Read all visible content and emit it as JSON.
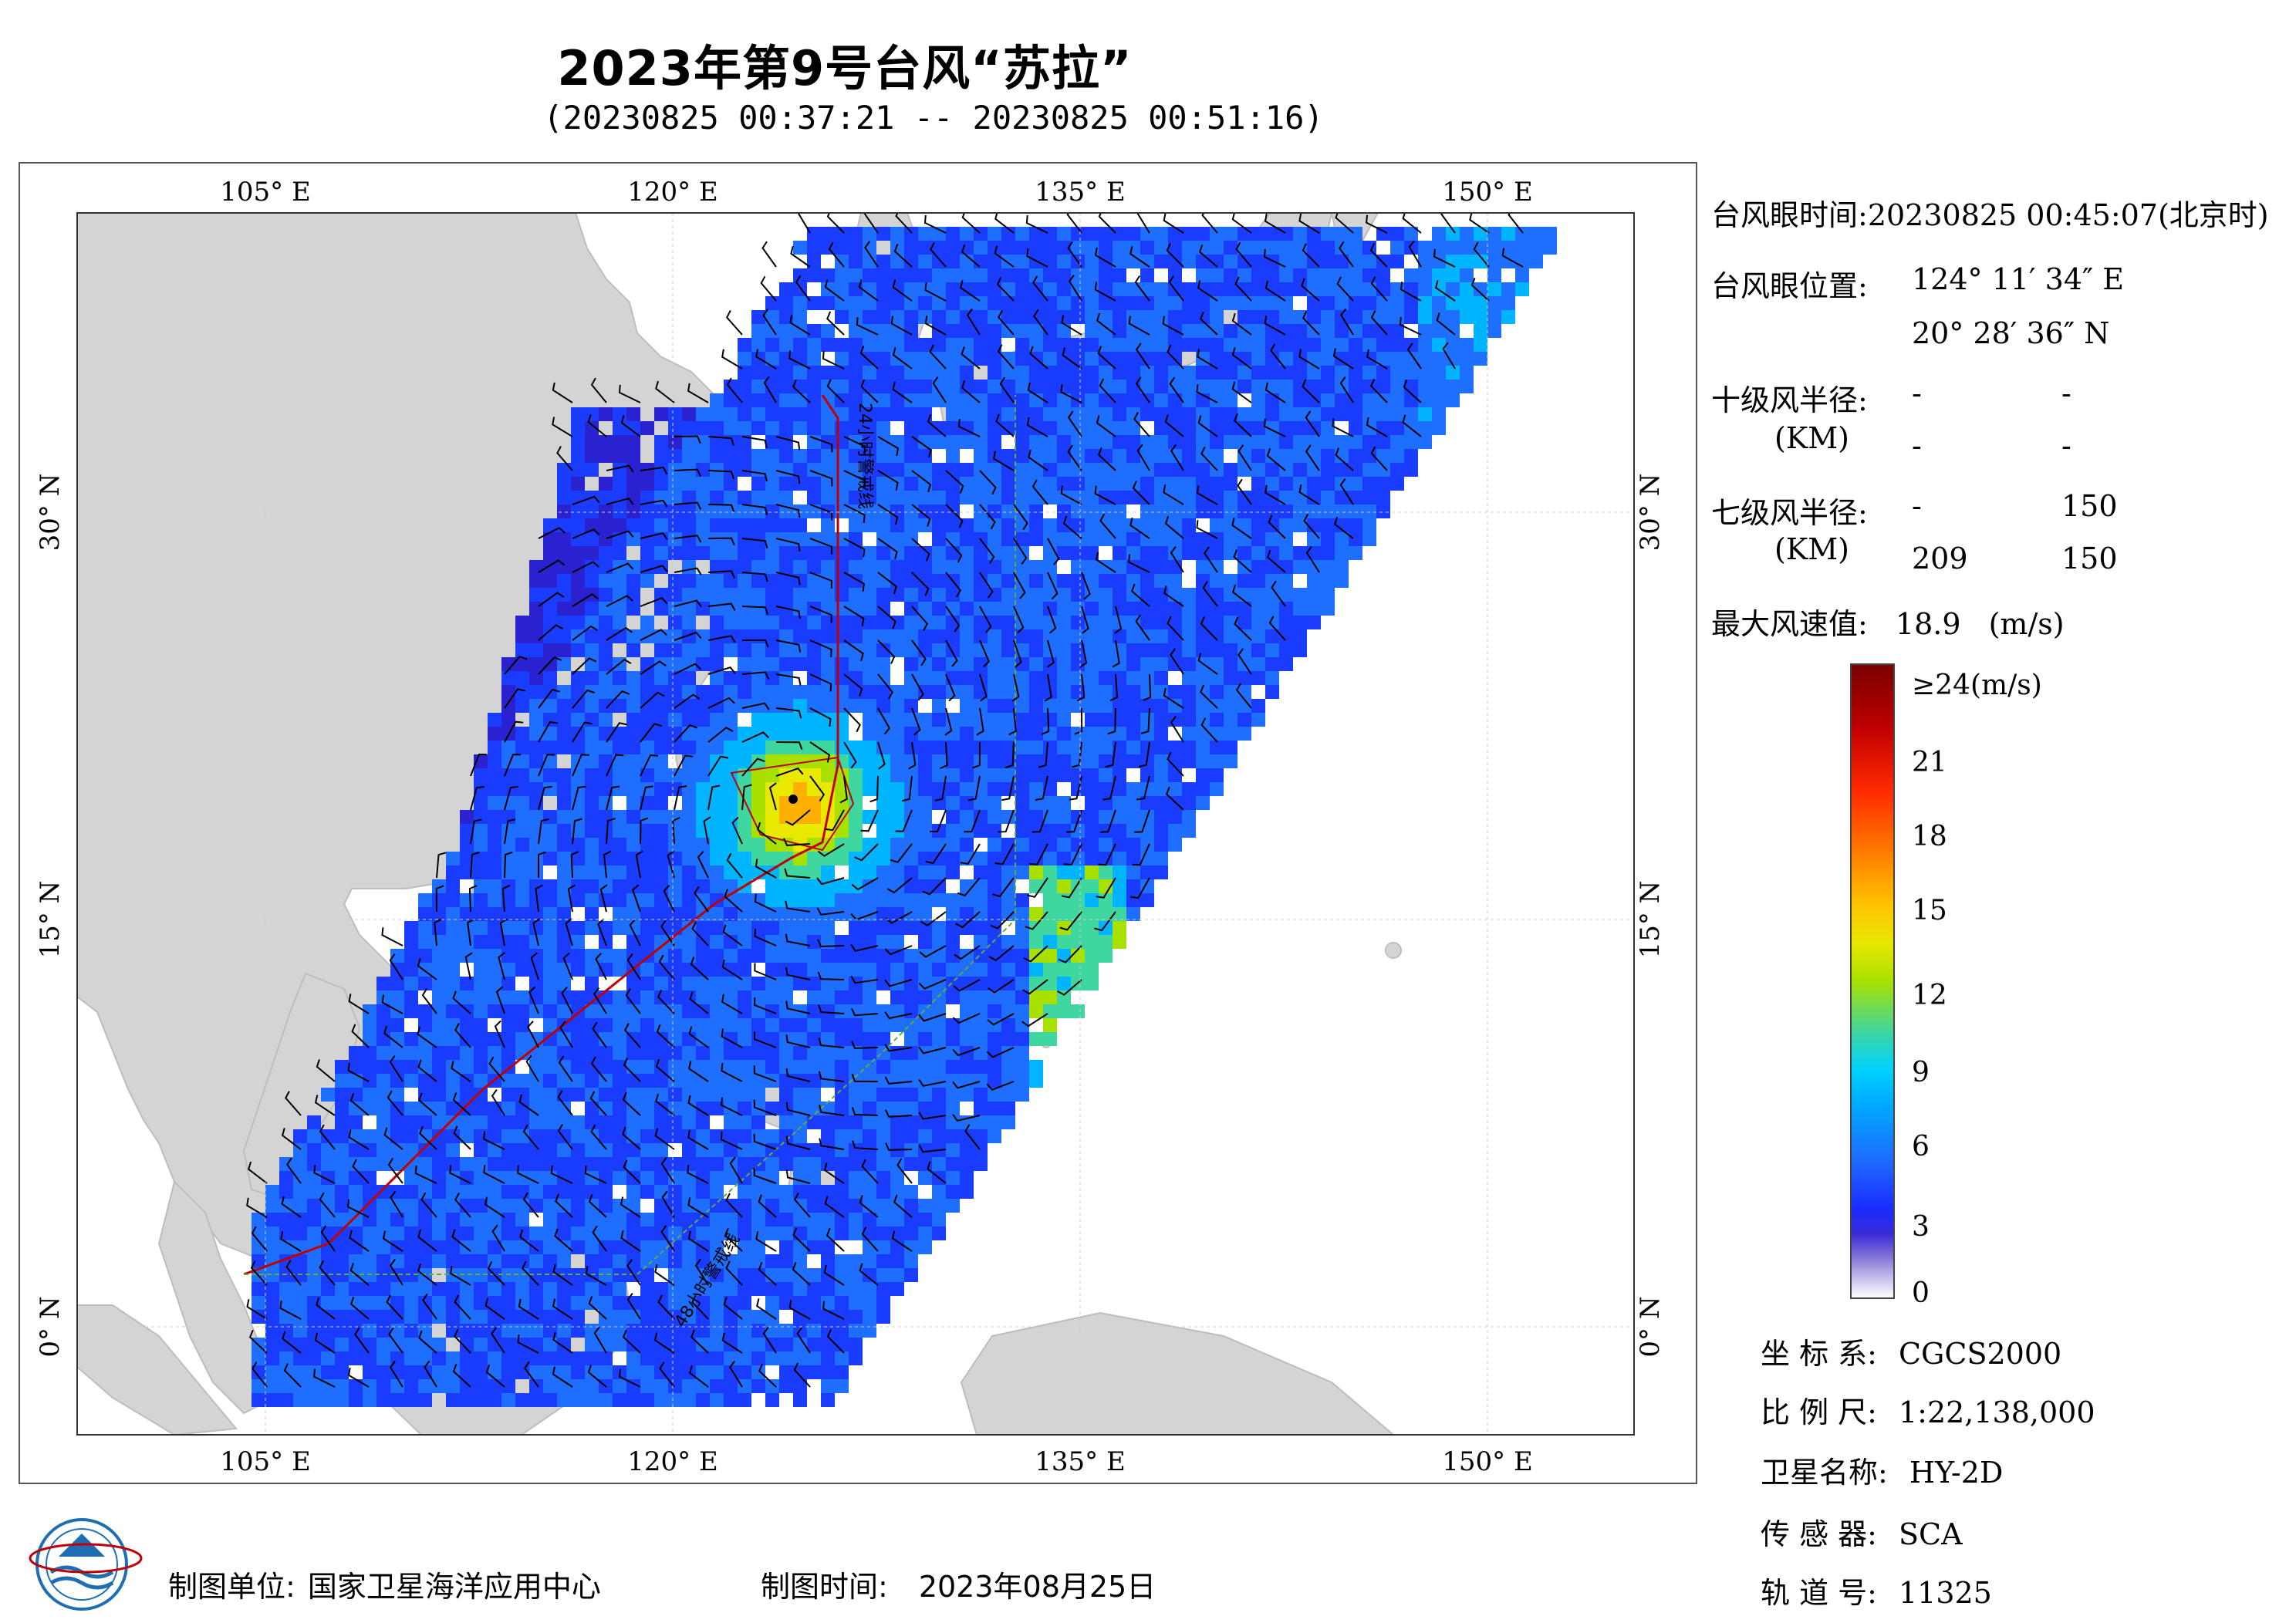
{
  "title": "2023年第9号台风“苏拉”",
  "subtitle": "(20230825 00:37:21 -- 20230825 00:51:16)",
  "map": {
    "lon_ticks_top": [
      "105° E",
      "120° E",
      "135° E",
      "150° E"
    ],
    "lon_ticks_bottom": [
      "105° E",
      "120° E",
      "135° E",
      "150° E"
    ],
    "lat_ticks": [
      "30° N",
      "15° N",
      "0° N"
    ],
    "track_label_24h": "24小时警戒线",
    "track_label_48h": "48小时警戒线",
    "colors": {
      "land": "#d4d4d4",
      "ocean": "#ffffff",
      "warning_24h": "#c00000",
      "warning_48h": "#5fae3a",
      "barb": "#000000"
    }
  },
  "info": {
    "eye_time_label": "台风眼时间:",
    "eye_time_value": "20230825 00:45:07(北京时)",
    "eye_pos_label": "台风眼位置:",
    "eye_lon": "124° 11′ 34″ E",
    "eye_lat": "20° 28′ 36″ N",
    "r10_label": "十级风半径:",
    "r10_unit": "(KM)",
    "r10_values": [
      "-",
      "-",
      "-",
      "-"
    ],
    "r7_label": "七级风半径:",
    "r7_unit": "(KM)",
    "r7_values": [
      "-",
      "150",
      "209",
      "150"
    ],
    "max_wind_label": "最大风速值:",
    "max_wind_value": "18.9",
    "max_wind_unit": "(m/s)"
  },
  "colorbar": {
    "labels": [
      "≥24(m/s)",
      "21",
      "18",
      "15",
      "12",
      "9",
      "6",
      "3",
      "0"
    ],
    "max": 24,
    "min": 0
  },
  "meta": {
    "crs_label": "坐 标 系:",
    "crs_value": "CGCS2000",
    "scale_label": "比 例 尺:",
    "scale_value": "1:22,138,000",
    "sat_label": "卫星名称:",
    "sat_value": "HY-2D",
    "sensor_label": "传 感 器:",
    "sensor_value": "SCA",
    "orbit_label": "轨 道 号:",
    "orbit_value": "11325"
  },
  "footer": {
    "producer_label": "制图单位:",
    "producer_value": "国家卫星海洋应用中心",
    "date_label": "制图时间:",
    "date_value": "2023年08月25日"
  }
}
